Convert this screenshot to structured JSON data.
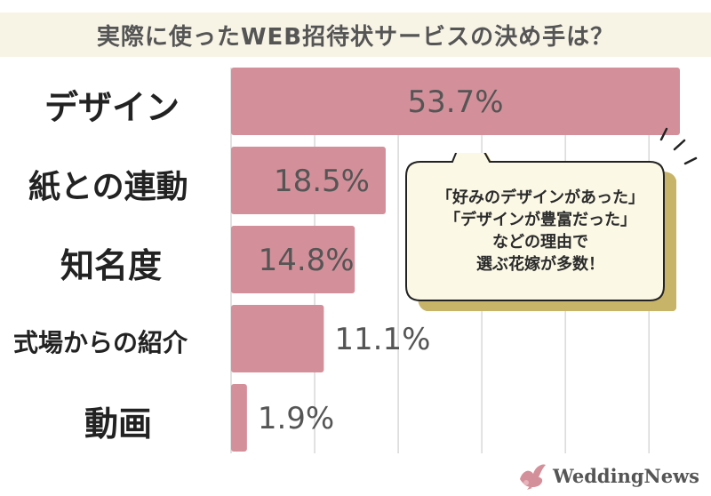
{
  "title": "実際に使ったWEB招待状サービスの決め手は？",
  "chart_data": {
    "type": "bar",
    "orientation": "horizontal",
    "categories": [
      "デザイン",
      "紙との連動",
      "知名度",
      "式場からの紹介",
      "動画"
    ],
    "values": [
      53.7,
      18.5,
      14.8,
      11.1,
      1.9
    ],
    "value_labels": [
      "53.7%",
      "18.5%",
      "14.8%",
      "11.1%",
      "1.9%"
    ],
    "unit": "%",
    "xlim": [
      0,
      55
    ],
    "grid": true,
    "bar_color": "#d4909a"
  },
  "callout": {
    "lines": [
      "「好みのデザインがあった」",
      "「デザインが豊富だった」",
      "などの理由で",
      "選ぶ花嫁が多数！"
    ]
  },
  "logo": {
    "text": "WeddingNews",
    "icon": "dove-icon"
  },
  "colors": {
    "title_band": "#f7f4e6",
    "bar": "#d4909a",
    "callout_bg": "#fbf8e6",
    "callout_shadow": "#c8b468"
  }
}
